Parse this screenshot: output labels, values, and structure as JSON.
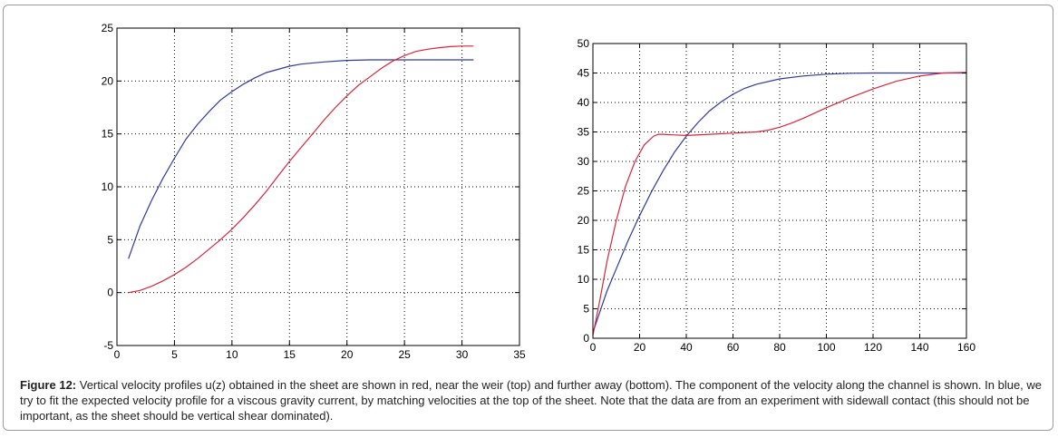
{
  "caption": {
    "label": "Figure 12:",
    "text": " Vertical velocity profiles u(z) obtained in the sheet are shown in red, near the weir (top) and further away (bottom). The component of the velocity along the channel is shown. In blue, we try to fit the expected velocity profile for a viscous gravity current, by matching velocities at the top of the sheet. Note that the data are from an experiment with sidewall contact (this should not be important, as the sheet should be vertical shear dominated)."
  },
  "chart_data": [
    {
      "type": "line",
      "title": "",
      "xlabel": "",
      "ylabel": "",
      "xlim": [
        0,
        35
      ],
      "ylim": [
        -5,
        25
      ],
      "xticks": [
        0,
        5,
        10,
        15,
        20,
        25,
        30,
        35
      ],
      "yticks": [
        -5,
        0,
        5,
        10,
        15,
        20,
        25
      ],
      "grid": true,
      "series": [
        {
          "color": "#2e3a9e",
          "x": [
            1,
            2,
            3,
            4,
            5,
            6,
            7,
            8,
            9,
            10,
            11,
            12,
            13,
            14,
            15,
            16,
            18,
            20,
            22,
            24,
            26,
            28,
            30,
            31
          ],
          "y": [
            3.2,
            6.3,
            8.7,
            10.8,
            12.7,
            14.5,
            15.9,
            17.1,
            18.2,
            19.0,
            19.7,
            20.3,
            20.8,
            21.1,
            21.4,
            21.6,
            21.8,
            21.95,
            22.0,
            22.0,
            22.0,
            22.0,
            22.0,
            22.0
          ]
        },
        {
          "color": "#d9263a",
          "x": [
            1,
            2,
            3,
            4,
            5,
            6,
            7,
            8,
            9,
            10,
            11,
            12,
            13,
            14,
            15,
            16,
            17,
            18,
            19,
            20,
            21,
            22,
            23,
            24,
            25,
            26,
            27,
            28,
            29,
            30,
            31
          ],
          "y": [
            0.0,
            0.2,
            0.6,
            1.1,
            1.7,
            2.4,
            3.2,
            4.1,
            5.0,
            6.0,
            7.1,
            8.3,
            9.6,
            11.0,
            12.4,
            13.7,
            15.0,
            16.3,
            17.5,
            18.6,
            19.6,
            20.4,
            21.2,
            21.9,
            22.4,
            22.8,
            23.0,
            23.15,
            23.25,
            23.3,
            23.3
          ]
        }
      ]
    },
    {
      "type": "line",
      "title": "",
      "xlabel": "",
      "ylabel": "",
      "xlim": [
        0,
        160
      ],
      "ylim": [
        0,
        50
      ],
      "xticks": [
        0,
        20,
        40,
        60,
        80,
        100,
        120,
        140,
        160
      ],
      "yticks": [
        0,
        5,
        10,
        15,
        20,
        25,
        30,
        35,
        40,
        45,
        50
      ],
      "grid": true,
      "series": [
        {
          "color": "#2e3a9e",
          "x": [
            0,
            3,
            6,
            10,
            15,
            20,
            25,
            30,
            35,
            40,
            45,
            50,
            55,
            60,
            65,
            70,
            80,
            90,
            100,
            110,
            120,
            130,
            140,
            150,
            160
          ],
          "y": [
            1.0,
            4.5,
            8.0,
            11.8,
            16.5,
            20.8,
            24.8,
            28.4,
            31.6,
            34.3,
            36.6,
            38.6,
            40.1,
            41.4,
            42.4,
            43.1,
            44.0,
            44.5,
            44.8,
            44.95,
            45.0,
            45.0,
            45.0,
            45.0,
            45.0
          ]
        },
        {
          "color": "#d9263a",
          "x": [
            0,
            3,
            6,
            10,
            14,
            18,
            22,
            26,
            28,
            30,
            35,
            40,
            50,
            60,
            70,
            75,
            80,
            85,
            90,
            95,
            100,
            110,
            120,
            130,
            140,
            150,
            160
          ],
          "y": [
            0.5,
            6.5,
            13.0,
            20.0,
            25.8,
            30.0,
            32.8,
            34.3,
            34.6,
            34.6,
            34.5,
            34.4,
            34.6,
            34.8,
            35.0,
            35.3,
            35.8,
            36.5,
            37.3,
            38.2,
            39.1,
            40.8,
            42.3,
            43.6,
            44.5,
            45.0,
            45.1
          ]
        }
      ]
    }
  ]
}
